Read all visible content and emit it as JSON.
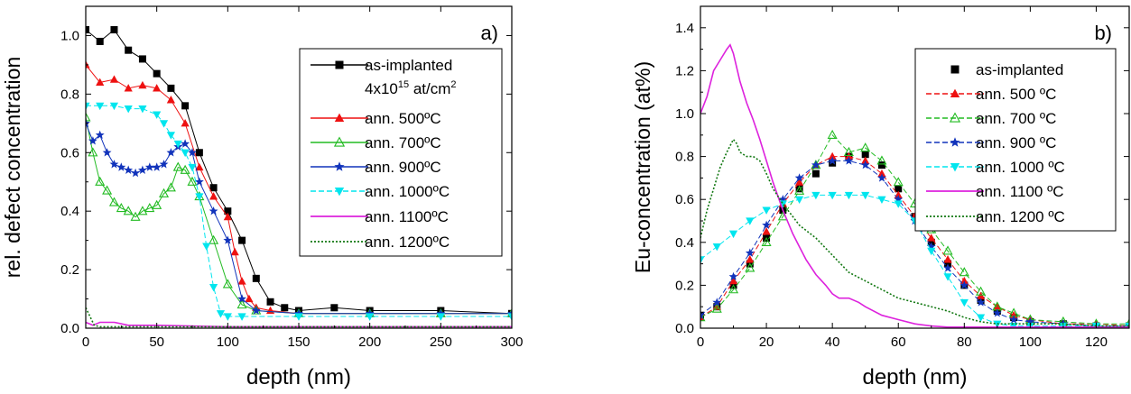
{
  "chart_data": [
    {
      "type": "line",
      "panel_label": "a)",
      "xlabel": "depth (nm)",
      "ylabel": "rel. defect concentration",
      "xlim": [
        0,
        300
      ],
      "ylim": [
        0,
        1.1
      ],
      "xticks": [
        0,
        50,
        100,
        150,
        200,
        250,
        300
      ],
      "yticks": [
        0.0,
        0.2,
        0.4,
        0.6,
        0.8,
        1.0
      ],
      "legend_position": "top-right",
      "legend_note": "4x10",
      "legend_note_sup": "15",
      "legend_note_tail": " at/cm",
      "legend_note_sup2": "2",
      "series": [
        {
          "name": "as-implanted",
          "color": "#000000",
          "marker": "square",
          "line": "solid",
          "x": [
            0,
            10,
            20,
            30,
            40,
            50,
            60,
            70,
            80,
            90,
            100,
            110,
            120,
            130,
            140,
            150,
            175,
            200,
            250,
            300
          ],
          "y": [
            1.02,
            0.98,
            1.02,
            0.95,
            0.92,
            0.87,
            0.82,
            0.76,
            0.6,
            0.48,
            0.4,
            0.3,
            0.17,
            0.09,
            0.07,
            0.06,
            0.07,
            0.06,
            0.06,
            0.05
          ]
        },
        {
          "name": "ann. 500ºC",
          "color": "#ee1111",
          "marker": "triangle",
          "line": "solid",
          "x": [
            0,
            10,
            20,
            30,
            40,
            50,
            60,
            70,
            80,
            90,
            100,
            105,
            110,
            115,
            120,
            130,
            150,
            200,
            250,
            300
          ],
          "y": [
            0.9,
            0.84,
            0.85,
            0.82,
            0.83,
            0.82,
            0.78,
            0.7,
            0.55,
            0.45,
            0.38,
            0.26,
            0.16,
            0.1,
            0.07,
            0.06,
            0.05,
            0.05,
            0.05,
            0.05
          ]
        },
        {
          "name": "ann. 700ºC",
          "color": "#22bb22",
          "marker": "triangle-open",
          "line": "solid",
          "x": [
            0,
            5,
            10,
            15,
            20,
            25,
            30,
            35,
            40,
            45,
            50,
            55,
            60,
            65,
            70,
            75,
            80,
            90,
            100,
            110,
            120,
            150,
            200,
            250,
            300
          ],
          "y": [
            0.72,
            0.6,
            0.5,
            0.47,
            0.43,
            0.41,
            0.4,
            0.38,
            0.4,
            0.41,
            0.42,
            0.46,
            0.48,
            0.55,
            0.54,
            0.5,
            0.45,
            0.3,
            0.15,
            0.08,
            0.06,
            0.05,
            0.05,
            0.05,
            0.05
          ]
        },
        {
          "name": "ann. 900ºC",
          "color": "#1133bb",
          "marker": "star",
          "line": "solid",
          "x": [
            0,
            5,
            10,
            15,
            20,
            25,
            30,
            35,
            40,
            45,
            50,
            55,
            60,
            65,
            70,
            75,
            80,
            90,
            100,
            110,
            120,
            150,
            200,
            250,
            300
          ],
          "y": [
            0.7,
            0.64,
            0.66,
            0.6,
            0.56,
            0.55,
            0.54,
            0.53,
            0.54,
            0.55,
            0.55,
            0.56,
            0.6,
            0.62,
            0.63,
            0.6,
            0.5,
            0.4,
            0.3,
            0.1,
            0.06,
            0.05,
            0.05,
            0.05,
            0.05
          ]
        },
        {
          "name": "ann. 1000ºC",
          "color": "#00e5ee",
          "marker": "triangle-down",
          "line": "dashed",
          "x": [
            0,
            10,
            20,
            30,
            40,
            50,
            55,
            60,
            65,
            70,
            75,
            80,
            85,
            90,
            95,
            100,
            110,
            150,
            200,
            250,
            300
          ],
          "y": [
            0.76,
            0.76,
            0.76,
            0.75,
            0.75,
            0.73,
            0.7,
            0.66,
            0.63,
            0.6,
            0.55,
            0.45,
            0.28,
            0.14,
            0.05,
            0.04,
            0.04,
            0.04,
            0.04,
            0.04,
            0.04
          ]
        },
        {
          "name": "ann. 1100ºC",
          "color": "#dd22dd",
          "marker": "none",
          "line": "solid",
          "x": [
            0,
            5,
            10,
            20,
            30,
            40,
            50,
            100,
            150,
            200,
            250,
            300
          ],
          "y": [
            0.02,
            0.01,
            0.02,
            0.02,
            0.01,
            0.01,
            0.01,
            0.005,
            0.005,
            0.005,
            0.005,
            0.005
          ]
        },
        {
          "name": "ann. 1200ºC",
          "color": "#117711",
          "marker": "none",
          "line": "dotted",
          "x": [
            0,
            3,
            6,
            10,
            20,
            50,
            100,
            200,
            300
          ],
          "y": [
            0.07,
            0.04,
            0.01,
            0.005,
            0.005,
            0.005,
            0.005,
            0.005,
            0.005
          ]
        }
      ]
    },
    {
      "type": "line",
      "panel_label": "b)",
      "xlabel": "depth (nm)",
      "ylabel": "Eu-concentration (at%)",
      "xlim": [
        0,
        130
      ],
      "ylim": [
        0,
        1.5
      ],
      "xticks": [
        0,
        20,
        40,
        60,
        80,
        100,
        120
      ],
      "yticks": [
        0.0,
        0.2,
        0.4,
        0.6,
        0.8,
        1.0,
        1.2,
        1.4
      ],
      "legend_position": "top-right",
      "series": [
        {
          "name": "as-implanted",
          "color": "#000000",
          "marker": "square",
          "line": "none",
          "x": [
            0,
            5,
            10,
            15,
            20,
            25,
            30,
            35,
            40,
            45,
            50,
            55,
            60,
            65,
            70,
            75,
            80,
            85,
            90,
            95,
            100,
            110,
            120,
            130
          ],
          "y": [
            0.06,
            0.1,
            0.2,
            0.3,
            0.42,
            0.55,
            0.65,
            0.72,
            0.77,
            0.8,
            0.81,
            0.76,
            0.65,
            0.52,
            0.4,
            0.3,
            0.2,
            0.13,
            0.08,
            0.05,
            0.03,
            0.02,
            0.01,
            0.01
          ]
        },
        {
          "name": "ann. 500 ºC",
          "color": "#ee1111",
          "marker": "triangle",
          "line": "dashed",
          "x": [
            0,
            5,
            10,
            15,
            20,
            25,
            30,
            35,
            40,
            45,
            50,
            55,
            60,
            65,
            70,
            75,
            80,
            85,
            90,
            95,
            100,
            110,
            120,
            130
          ],
          "y": [
            0.05,
            0.1,
            0.22,
            0.32,
            0.45,
            0.58,
            0.68,
            0.76,
            0.8,
            0.8,
            0.78,
            0.72,
            0.62,
            0.52,
            0.42,
            0.32,
            0.22,
            0.15,
            0.1,
            0.06,
            0.04,
            0.02,
            0.02,
            0.01
          ]
        },
        {
          "name": "ann. 700 ºC",
          "color": "#22bb22",
          "marker": "triangle-open",
          "line": "dashed",
          "x": [
            0,
            5,
            10,
            15,
            20,
            25,
            30,
            35,
            40,
            45,
            50,
            55,
            60,
            65,
            70,
            75,
            80,
            85,
            90,
            95,
            100,
            110,
            120,
            130
          ],
          "y": [
            0.05,
            0.09,
            0.18,
            0.28,
            0.4,
            0.52,
            0.64,
            0.76,
            0.9,
            0.82,
            0.84,
            0.78,
            0.68,
            0.58,
            0.46,
            0.36,
            0.26,
            0.17,
            0.1,
            0.07,
            0.04,
            0.03,
            0.02,
            0.02
          ]
        },
        {
          "name": "ann. 900 ºC",
          "color": "#1133bb",
          "marker": "star",
          "line": "dashed",
          "x": [
            0,
            5,
            10,
            15,
            20,
            25,
            30,
            35,
            40,
            45,
            50,
            55,
            60,
            65,
            70,
            75,
            80,
            85,
            90,
            95,
            100,
            110,
            120,
            130
          ],
          "y": [
            0.06,
            0.12,
            0.24,
            0.35,
            0.48,
            0.6,
            0.7,
            0.76,
            0.78,
            0.78,
            0.76,
            0.7,
            0.6,
            0.5,
            0.38,
            0.28,
            0.2,
            0.12,
            0.07,
            0.04,
            0.03,
            0.02,
            0.01,
            0.01
          ]
        },
        {
          "name": "ann. 1000 ºC",
          "color": "#00e5ee",
          "marker": "triangle-down",
          "line": "dashed",
          "x": [
            0,
            5,
            10,
            15,
            20,
            25,
            30,
            35,
            40,
            45,
            50,
            55,
            60,
            65,
            70,
            75,
            80,
            85,
            90,
            95,
            100,
            110,
            120,
            130
          ],
          "y": [
            0.32,
            0.38,
            0.44,
            0.5,
            0.55,
            0.58,
            0.6,
            0.62,
            0.62,
            0.62,
            0.62,
            0.6,
            0.58,
            0.5,
            0.36,
            0.24,
            0.12,
            0.05,
            0.02,
            0.01,
            0.01,
            0.01,
            0.01,
            0.01
          ]
        },
        {
          "name": "ann. 1100 ºC",
          "color": "#dd22dd",
          "marker": "none",
          "line": "solid",
          "x": [
            0,
            2,
            4,
            6,
            8,
            9,
            10,
            12,
            14,
            16,
            18,
            20,
            22,
            25,
            28,
            30,
            32,
            35,
            38,
            40,
            42,
            45,
            48,
            50,
            55,
            60,
            65,
            70,
            75,
            80,
            90,
            100,
            110,
            120,
            130
          ],
          "y": [
            1.0,
            1.08,
            1.2,
            1.25,
            1.3,
            1.32,
            1.28,
            1.15,
            1.05,
            0.97,
            0.88,
            0.78,
            0.68,
            0.55,
            0.44,
            0.38,
            0.32,
            0.25,
            0.2,
            0.16,
            0.14,
            0.14,
            0.12,
            0.1,
            0.06,
            0.04,
            0.02,
            0.01,
            0.005,
            0.005,
            0.005,
            0.005,
            0.005,
            0.005,
            0.005
          ]
        },
        {
          "name": "ann. 1200 ºC",
          "color": "#117711",
          "marker": "none",
          "line": "dotted",
          "x": [
            0,
            2,
            4,
            6,
            8,
            10,
            11,
            12,
            14,
            16,
            18,
            20,
            22,
            25,
            28,
            30,
            35,
            40,
            45,
            50,
            55,
            60,
            65,
            70,
            75,
            80,
            85,
            90,
            95,
            100,
            110,
            120,
            130
          ],
          "y": [
            0.42,
            0.55,
            0.65,
            0.75,
            0.82,
            0.88,
            0.86,
            0.82,
            0.8,
            0.8,
            0.78,
            0.72,
            0.65,
            0.58,
            0.52,
            0.48,
            0.42,
            0.34,
            0.26,
            0.22,
            0.18,
            0.14,
            0.12,
            0.1,
            0.08,
            0.05,
            0.03,
            0.02,
            0.02,
            0.02,
            0.02,
            0.01,
            0.01
          ]
        }
      ]
    }
  ]
}
